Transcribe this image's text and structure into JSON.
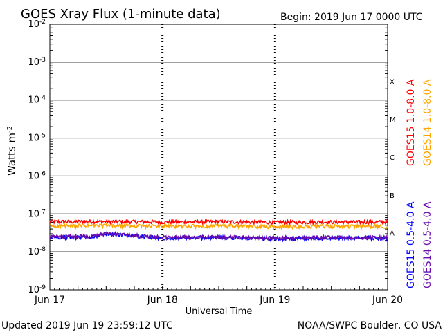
{
  "chart_data": {
    "type": "line",
    "title": "GOES Xray Flux (1-minute data)",
    "begin_label": "Begin:  2019 Jun 17 0000 UTC",
    "xlabel": "Universal Time",
    "ylabel": "Watts m",
    "ylabel_exponent": "-2",
    "y_scale": "log",
    "ylim": [
      1e-09,
      0.01
    ],
    "y_ticks": [
      {
        "mantissa": "10",
        "exponent": "-9"
      },
      {
        "mantissa": "10",
        "exponent": "-8"
      },
      {
        "mantissa": "10",
        "exponent": "-7"
      },
      {
        "mantissa": "10",
        "exponent": "-6"
      },
      {
        "mantissa": "10",
        "exponent": "-5"
      },
      {
        "mantissa": "10",
        "exponent": "-4"
      },
      {
        "mantissa": "10",
        "exponent": "-3"
      },
      {
        "mantissa": "10",
        "exponent": "-2"
      }
    ],
    "x_ticks": [
      "Jun 17",
      "Jun 18",
      "Jun 19",
      "Jun 20"
    ],
    "xlim_days": [
      0,
      3
    ],
    "flare_classes": [
      "A",
      "B",
      "C",
      "M",
      "X"
    ],
    "series": [
      {
        "name": "GOES15 1.0-8.0 A",
        "color": "#ff0000",
        "base": 6.2e-08,
        "x": [
          0,
          0.5,
          1,
          1.5,
          2,
          2.5,
          3
        ],
        "values": [
          6.2e-08,
          6.3e-08,
          6.1e-08,
          6.2e-08,
          6e-08,
          6.1e-08,
          6.1e-08
        ]
      },
      {
        "name": "GOES14 1.0-8.0 A",
        "color": "#ffa500",
        "base": 4.8e-08,
        "x": [
          0,
          0.5,
          1,
          1.5,
          2,
          2.5,
          3
        ],
        "values": [
          4.8e-08,
          4.9e-08,
          4.7e-08,
          4.8e-08,
          4.6e-08,
          4.7e-08,
          4.7e-08
        ]
      },
      {
        "name": "GOES15 0.5-4.0 A",
        "color": "#0000ff",
        "base": 2.4e-08,
        "x": [
          0,
          0.4,
          0.5,
          1,
          1.5,
          2,
          2.5,
          3
        ],
        "values": [
          2.4e-08,
          2.5e-08,
          3e-08,
          2.3e-08,
          2.4e-08,
          2.2e-08,
          2.3e-08,
          2.3e-08
        ]
      },
      {
        "name": "GOES14 0.5-4.0 A",
        "color": "#6a0dad",
        "base": 2.5e-08,
        "x": [
          0,
          0.4,
          0.5,
          1,
          1.5,
          2,
          2.5,
          3
        ],
        "values": [
          2.5e-08,
          2.6e-08,
          3e-08,
          2.4e-08,
          2.5e-08,
          2.3e-08,
          2.4e-08,
          2.4e-08
        ]
      }
    ]
  },
  "footer": {
    "updated": "Updated 2019 Jun 19 23:59:12 UTC",
    "source": "NOAA/SWPC Boulder, CO USA"
  }
}
